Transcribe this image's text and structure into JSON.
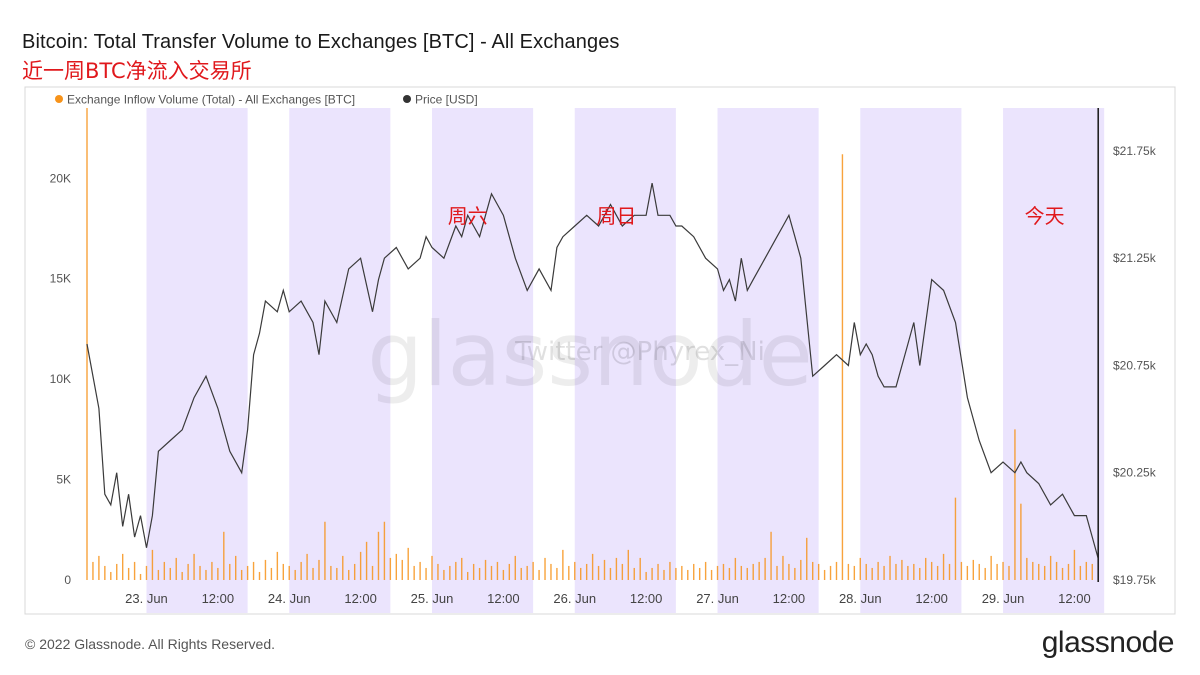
{
  "header": {
    "title": "Bitcoin: Total Transfer Volume to Exchanges [BTC] - All Exchanges",
    "subtitle": "近一周BTC净流入交易所"
  },
  "footer": {
    "copyright": "© 2022 Glassnode. All Rights Reserved.",
    "brand": "glassnode"
  },
  "watermark": {
    "logo": "glassnode",
    "credit": "Twitter @Phyrex_Ni"
  },
  "chart_data": {
    "type": "line",
    "title": "Bitcoin: Total Transfer Volume to Exchanges [BTC] - All Exchanges",
    "legend_position": "top-left",
    "grid": false,
    "x_ticks": [
      "23. Jun",
      "12:00",
      "24. Jun",
      "12:00",
      "25. Jun",
      "12:00",
      "26. Jun",
      "12:00",
      "27. Jun",
      "12:00",
      "28. Jun",
      "12:00",
      "29. Jun",
      "12:00"
    ],
    "x_range_hours": [
      0,
      170.3
    ],
    "y_left": {
      "ticks": [
        "0",
        "5K",
        "10K",
        "15K",
        "20K"
      ],
      "range": [
        0,
        23500
      ]
    },
    "y_right": {
      "ticks": [
        "$19.75k",
        "$20.25k",
        "$20.75k",
        "$21.25k",
        "$21.75k"
      ],
      "range": [
        19750,
        21950
      ]
    },
    "shaded_bands_hours": [
      [
        10,
        27
      ],
      [
        34,
        51
      ],
      [
        58,
        75
      ],
      [
        82,
        99
      ],
      [
        106,
        123
      ],
      [
        130,
        147
      ],
      [
        154,
        171
      ]
    ],
    "annotations": [
      {
        "text": "周六",
        "x_hour": 64,
        "color": "#e0181c"
      },
      {
        "text": "周日",
        "x_hour": 89,
        "color": "#e0181c"
      },
      {
        "text": "今天",
        "x_hour": 161,
        "color": "#e0181c"
      }
    ],
    "today_marker_hour": 170,
    "series": [
      {
        "name": "Exchange Inflow Volume (Total) - All Exchanges [BTC]",
        "color": "#f7931a",
        "axis": "left",
        "x_hours": [
          0,
          1,
          2,
          3,
          4,
          5,
          6,
          7,
          8,
          9,
          10,
          11,
          12,
          13,
          14,
          15,
          16,
          17,
          18,
          19,
          20,
          21,
          22,
          23,
          24,
          25,
          26,
          27,
          28,
          29,
          30,
          31,
          32,
          33,
          34,
          35,
          36,
          37,
          38,
          39,
          40,
          41,
          42,
          43,
          44,
          45,
          46,
          47,
          48,
          49,
          50,
          51,
          52,
          53,
          54,
          55,
          56,
          57,
          58,
          59,
          60,
          61,
          62,
          63,
          64,
          65,
          66,
          67,
          68,
          69,
          70,
          71,
          72,
          73,
          74,
          75,
          76,
          77,
          78,
          79,
          80,
          81,
          82,
          83,
          84,
          85,
          86,
          87,
          88,
          89,
          90,
          91,
          92,
          93,
          94,
          95,
          96,
          97,
          98,
          99,
          100,
          101,
          102,
          103,
          104,
          105,
          106,
          107,
          108,
          109,
          110,
          111,
          112,
          113,
          114,
          115,
          116,
          117,
          118,
          119,
          120,
          121,
          122,
          123,
          124,
          125,
          126,
          127,
          128,
          129,
          130,
          131,
          132,
          133,
          134,
          135,
          136,
          137,
          138,
          139,
          140,
          141,
          142,
          143,
          144,
          145,
          146,
          147,
          148,
          149,
          150,
          151,
          152,
          153,
          154,
          155,
          156,
          157,
          158,
          159,
          160,
          161,
          162,
          163,
          164,
          165,
          166,
          167,
          168,
          169,
          170
        ],
        "values": [
          24500,
          900,
          1200,
          700,
          400,
          800,
          1300,
          600,
          900,
          300,
          700,
          1500,
          500,
          900,
          600,
          1100,
          400,
          800,
          1300,
          700,
          500,
          900,
          600,
          2400,
          800,
          1200,
          500,
          700,
          900,
          400,
          1000,
          600,
          1400,
          800,
          700,
          500,
          900,
          1300,
          600,
          1000,
          2900,
          700,
          600,
          1200,
          500,
          800,
          1400,
          1900,
          700,
          2400,
          2900,
          1100,
          1300,
          1000,
          1600,
          700,
          900,
          600,
          1200,
          800,
          500,
          700,
          900,
          1100,
          400,
          800,
          600,
          1000,
          700,
          900,
          500,
          800,
          1200,
          600,
          700,
          900,
          500,
          1100,
          800,
          600,
          1500,
          700,
          900,
          600,
          800,
          1300,
          700,
          1000,
          600,
          1100,
          800,
          1500,
          600,
          1100,
          400,
          600,
          800,
          500,
          900,
          600,
          700,
          500,
          800,
          600,
          900,
          500,
          700,
          800,
          600,
          1100,
          700,
          600,
          800,
          900,
          1100,
          2400,
          700,
          1200,
          800,
          600,
          1000,
          2100,
          900,
          800,
          500,
          700,
          900,
          21200,
          800,
          700,
          1100,
          800,
          600,
          900,
          700,
          1200,
          800,
          1000,
          700,
          800,
          600,
          1100,
          900,
          700,
          1300,
          800,
          4100,
          900,
          700,
          1000,
          800,
          600,
          1200,
          800,
          900,
          700,
          7500,
          3800,
          1100,
          900,
          800,
          700,
          1200,
          900,
          600,
          800,
          1500,
          700,
          900,
          800,
          1200
        ]
      },
      {
        "name": "Price [USD]",
        "color": "#000000",
        "axis": "right",
        "x_hours": [
          0,
          2,
          3,
          4,
          5,
          6,
          7,
          8,
          9,
          10,
          11,
          12,
          14,
          16,
          18,
          20,
          22,
          24,
          26,
          27,
          28,
          29,
          30,
          32,
          33,
          34,
          36,
          38,
          39,
          40,
          42,
          44,
          46,
          48,
          49,
          50,
          52,
          54,
          56,
          57,
          58,
          60,
          62,
          63,
          64,
          65,
          66,
          67,
          68,
          69,
          70,
          71,
          72,
          74,
          76,
          78,
          79,
          80,
          82,
          84,
          86,
          88,
          89,
          90,
          92,
          94,
          95,
          96,
          98,
          99,
          100,
          102,
          104,
          106,
          107,
          108,
          109,
          110,
          111,
          112,
          114,
          116,
          117,
          118,
          119,
          120,
          122,
          124,
          126,
          128,
          129,
          130,
          131,
          132,
          133,
          134,
          136,
          138,
          139,
          140,
          142,
          144,
          146,
          148,
          150,
          152,
          154,
          156,
          157,
          158,
          160,
          162,
          164,
          166,
          168,
          170
        ],
        "values": [
          20850,
          20550,
          20150,
          20100,
          20250,
          20000,
          20150,
          19950,
          20050,
          19900,
          20050,
          20350,
          20400,
          20450,
          20600,
          20700,
          20550,
          20350,
          20250,
          20450,
          20800,
          20900,
          21050,
          21000,
          21100,
          21000,
          21050,
          20950,
          20800,
          21050,
          20950,
          21200,
          21250,
          21000,
          21150,
          21250,
          21300,
          21200,
          21250,
          21350,
          21300,
          21250,
          21400,
          21350,
          21450,
          21400,
          21350,
          21450,
          21550,
          21500,
          21450,
          21350,
          21250,
          21100,
          21200,
          21100,
          21300,
          21350,
          21400,
          21450,
          21400,
          21500,
          21450,
          21400,
          21450,
          21450,
          21600,
          21450,
          21450,
          21400,
          21400,
          21350,
          21250,
          21200,
          21100,
          21150,
          21050,
          21250,
          21100,
          21150,
          21250,
          21350,
          21400,
          21450,
          21350,
          21250,
          20700,
          20750,
          20800,
          20750,
          20950,
          20800,
          20850,
          20800,
          20700,
          20650,
          20650,
          20850,
          20950,
          20750,
          21150,
          21100,
          20950,
          20600,
          20400,
          20250,
          20300,
          20250,
          20300,
          20250,
          20200,
          20100,
          20150,
          20050,
          20050,
          19850
        ]
      }
    ]
  }
}
